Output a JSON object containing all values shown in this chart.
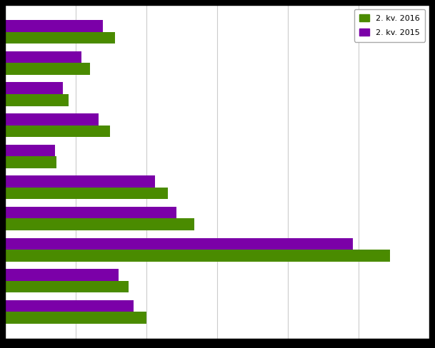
{
  "categories": [
    "",
    "",
    "",
    "",
    "",
    "",
    "",
    "",
    "",
    ""
  ],
  "values_2016": [
    155,
    120,
    90,
    148,
    72,
    230,
    268,
    545,
    175,
    200
  ],
  "values_2015": [
    138,
    108,
    82,
    132,
    70,
    212,
    242,
    492,
    160,
    182
  ],
  "color_2016": "#4a8b00",
  "color_2015": "#7b00a8",
  "legend_2016": "2. kv. 2016",
  "legend_2015": "2. kv. 2015",
  "xlim_max": 600,
  "xtick_step": 100,
  "figure_bgcolor": "#000000",
  "axes_bgcolor": "#ffffff",
  "grid_color": "#cccccc",
  "bar_height": 0.38,
  "figure_width": 6.09,
  "figure_height": 4.88,
  "dpi": 100,
  "spine_color": "#000000"
}
